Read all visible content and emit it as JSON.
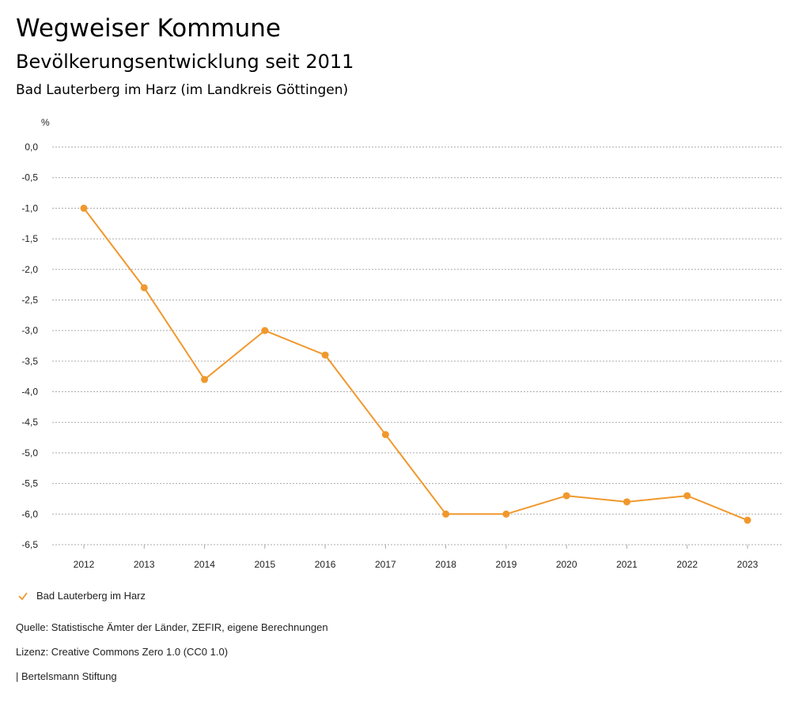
{
  "header": {
    "title": "Wegweiser Kommune",
    "subtitle": "Bevölkerungsentwicklung seit 2011",
    "region": "Bad Lauterberg im Harz (im Landkreis Göttingen)"
  },
  "chart_data": {
    "type": "line",
    "ylabel": "%",
    "ylim": [
      -6.5,
      0
    ],
    "yticks": [
      "0,0",
      "-0,5",
      "-1,0",
      "-1,5",
      "-2,0",
      "-2,5",
      "-3,0",
      "-3,5",
      "-4,0",
      "-4,5",
      "-5,0",
      "-5,5",
      "-6,0",
      "-6,5"
    ],
    "grid": true,
    "categories": [
      "2012",
      "2013",
      "2014",
      "2015",
      "2016",
      "2017",
      "2018",
      "2019",
      "2020",
      "2021",
      "2022",
      "2023"
    ],
    "series": [
      {
        "name": "Bad Lauterberg im Harz",
        "color": "#f0982d",
        "values": [
          -1.0,
          -2.3,
          -3.8,
          -3.0,
          -3.4,
          -4.7,
          -6.0,
          -6.0,
          -5.7,
          -5.8,
          -5.7,
          -6.1
        ]
      }
    ],
    "legend_position": "bottom-left"
  },
  "footer": {
    "source": "Quelle: Statistische Ämter der Länder, ZEFIR, eigene Berechnungen",
    "license": "Lizenz: Creative Commons Zero 1.0 (CC0 1.0)",
    "brand": "| Bertelsmann Stiftung"
  }
}
